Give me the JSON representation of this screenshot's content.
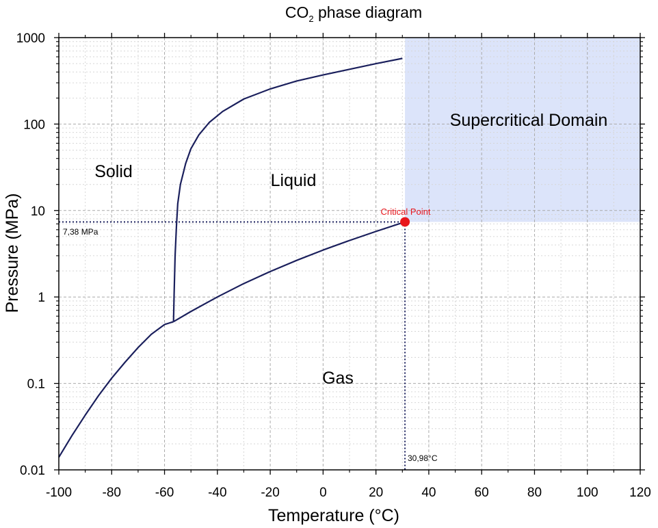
{
  "chart_data": {
    "type": "line",
    "title": "CO2 phase diagram",
    "title_main": "CO",
    "title_sub": "2",
    "title_rest": " phase diagram",
    "xlabel": "Temperature (°C)",
    "ylabel": "Pressure (MPa)",
    "xlim": [
      -100,
      120
    ],
    "ylim": [
      0.01,
      1000
    ],
    "y_scale": "log",
    "grid": true,
    "x_ticks": [
      -100,
      -80,
      -60,
      -40,
      -20,
      0,
      20,
      40,
      60,
      80,
      100,
      120
    ],
    "x_tick_labels": [
      "-100",
      "-80",
      "-60",
      "-40",
      "-20",
      "0",
      "20",
      "40",
      "60",
      "80",
      "100",
      "120"
    ],
    "y_ticks": [
      0.01,
      0.1,
      1,
      10,
      100,
      1000
    ],
    "y_tick_labels": [
      "0.01",
      "0.1",
      "1",
      "10",
      "100",
      "1000"
    ],
    "line_color": "#1a1f5c",
    "supercritical_color": "#dce4fa",
    "critical_point_color": "#e8161c",
    "regions": {
      "solid": "Solid",
      "liquid": "Liquid",
      "gas": "Gas",
      "supercritical": "Supercritical Domain"
    },
    "series": [
      {
        "x": [
          -100,
          -95,
          -90,
          -85,
          -80,
          -75,
          -70,
          -65,
          -60,
          -56.6
        ],
        "y": [
          0.014,
          0.025,
          0.043,
          0.072,
          0.115,
          0.175,
          0.26,
          0.37,
          0.48,
          0.518
        ]
      },
      {
        "x": [
          -56.6,
          -50,
          -40,
          -30,
          -20,
          -10,
          0,
          10,
          20,
          30.98
        ],
        "y": [
          0.518,
          0.68,
          1.0,
          1.43,
          1.97,
          2.65,
          3.49,
          4.5,
          5.73,
          7.38
        ]
      },
      {
        "x": [
          -56.6,
          -56.4,
          -56.0,
          -55.5,
          -55.0,
          -54.0,
          -52.0,
          -50.0,
          -47.0,
          -43.0,
          -38.0,
          -30.0,
          -20.0,
          -10.0,
          0.0,
          10.0,
          20.0,
          30.0
        ],
        "y": [
          0.518,
          1.0,
          3.0,
          6.5,
          12.0,
          20.0,
          35.0,
          52.0,
          75.0,
          105.0,
          140.0,
          195.0,
          255.0,
          315.0,
          370.0,
          430.0,
          500.0,
          575.0
        ]
      }
    ],
    "critical_point": {
      "x": 30.98,
      "y": 7.38,
      "label": "Critical Point",
      "x_label": "30,98°C",
      "y_label": "7,38 MPa"
    },
    "supercritical_domain": {
      "x_range": [
        30.98,
        120
      ],
      "y_range": [
        7.38,
        1000
      ]
    }
  }
}
